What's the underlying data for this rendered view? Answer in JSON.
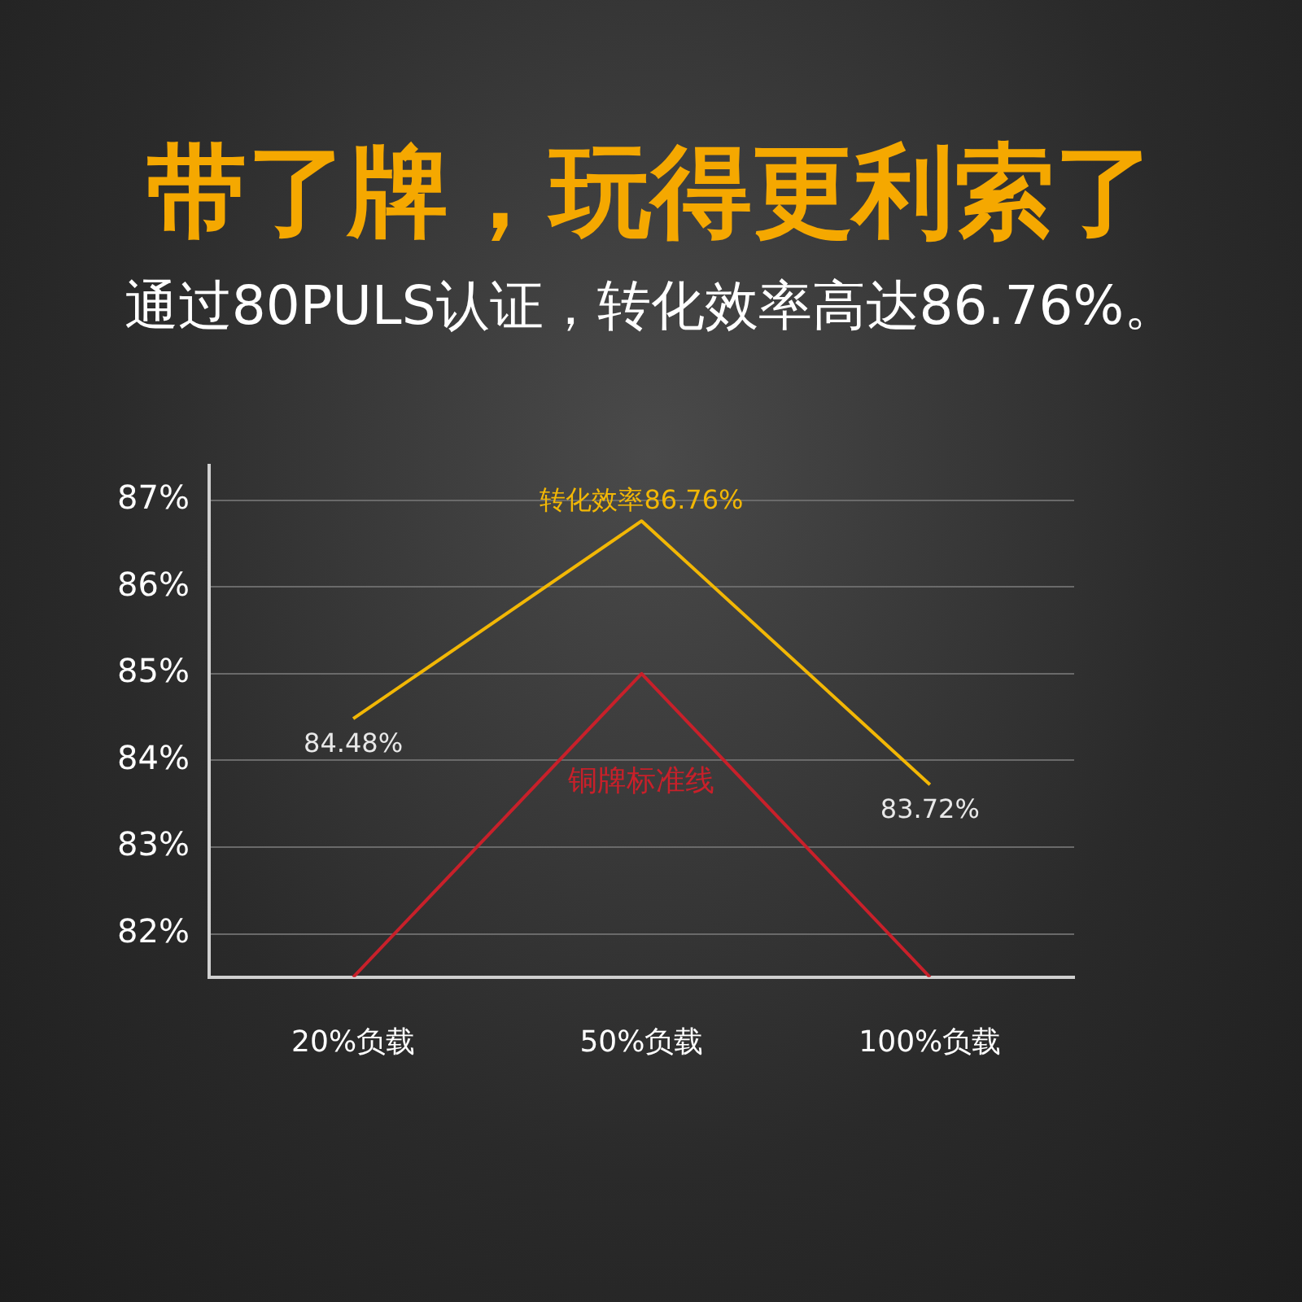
{
  "chart_data": {
    "type": "line",
    "title": "带了牌，玩得更利索了",
    "subtitle": "通过80PULS认证，转化效率高达86.76%。",
    "categories": [
      "20%负载",
      "50%负载",
      "100%负载"
    ],
    "series": [
      {
        "color": "#f2b705",
        "values": [
          84.48,
          86.76,
          83.72
        ],
        "value_labels": [
          "84.48%",
          "转化效率86.76%",
          "83.72%"
        ]
      },
      {
        "name": "铜牌标准线",
        "color": "#c8202a",
        "values": [
          81.5,
          85,
          81.5
        ]
      }
    ],
    "ylim": [
      81.5,
      87.4
    ],
    "yticks": [
      {
        "value": 82,
        "label": "82%"
      },
      {
        "value": 83,
        "label": "83%"
      },
      {
        "value": 84,
        "label": "84%"
      },
      {
        "value": 85,
        "label": "85%"
      },
      {
        "value": 86,
        "label": "86%"
      },
      {
        "value": 87,
        "label": "87%"
      }
    ],
    "grid": "y",
    "legend": false,
    "marker": "none",
    "line_style": "solid"
  }
}
